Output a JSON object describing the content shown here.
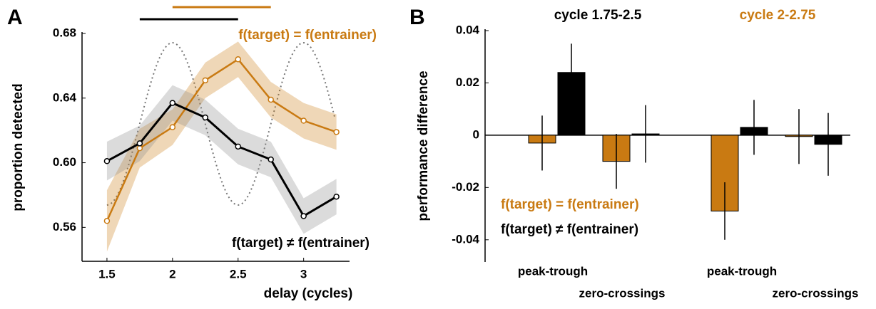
{
  "chart_data": [
    {
      "type": "line",
      "panel_label": "A",
      "x": [
        1.5,
        1.75,
        2,
        2.25,
        2.5,
        2.75,
        3,
        3.25
      ],
      "series": [
        {
          "name": "f(target) = f(entrainer)",
          "color": "#c97a12",
          "values": [
            0.564,
            0.609,
            0.622,
            0.651,
            0.664,
            0.639,
            0.626,
            0.619
          ],
          "error": [
            0.019,
            0.012,
            0.011,
            0.011,
            0.011,
            0.011,
            0.011,
            0.011
          ]
        },
        {
          "name": "f(target) ≠ f(entrainer)",
          "color": "#000000",
          "values": [
            0.601,
            0.612,
            0.637,
            0.628,
            0.61,
            0.602,
            0.567,
            0.579
          ],
          "error": [
            0.012,
            0.011,
            0.011,
            0.011,
            0.011,
            0.011,
            0.011,
            0.011
          ]
        }
      ],
      "significance_bars": [
        {
          "color": "#000000",
          "xrange": [
            1.75,
            2.5
          ]
        },
        {
          "color": "#c97a12",
          "xrange": [
            2,
            2.75
          ]
        }
      ],
      "xlabel": "delay (cycles)",
      "ylabel": "proportion detected",
      "xlim": [
        1.31,
        3.35
      ],
      "xticks": [
        1.5,
        2,
        2.5,
        3
      ],
      "ylim": [
        0.539,
        0.68
      ],
      "yticks": [
        0.56,
        {
          "value": 0.6,
          "label": "0.60"
        },
        0.64,
        0.68
      ]
    },
    {
      "type": "bar",
      "panel_label": "B",
      "categories": [
        "peak-trough",
        "zero-crossings",
        "peak-trough",
        "zero-crossings"
      ],
      "group_labels": [
        {
          "text": "cycle 1.75-2.5",
          "color": "#000000"
        },
        {
          "text": "cycle 2-2.75",
          "color": "#c97a12"
        }
      ],
      "series": [
        {
          "name": "f(target) = f(entrainer)",
          "color": "#c97a12",
          "values": [
            -0.003,
            -0.01,
            -0.029,
            -0.0005
          ],
          "error": [
            0.0105,
            0.0105,
            0.011,
            0.0105
          ]
        },
        {
          "name": "f(target) ≠ f(entrainer)",
          "color": "#000000",
          "values": [
            0.024,
            0.0005,
            0.003,
            -0.0035
          ],
          "error": [
            0.011,
            0.011,
            0.0105,
            0.012
          ]
        }
      ],
      "ylabel": "performance difference",
      "ylim": [
        -0.0485,
        0.04
      ],
      "yticks": [
        0.04,
        0.02,
        0,
        -0.02,
        -0.04
      ]
    }
  ]
}
